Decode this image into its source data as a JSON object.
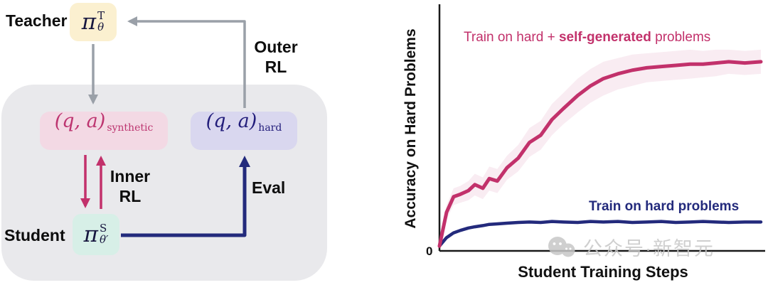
{
  "figure": {
    "diagram": {
      "teacher_label": "Teacher",
      "teacher_symbol": {
        "base": "π",
        "sup": "T",
        "sub": "θ"
      },
      "student_label": "Student",
      "student_symbol": {
        "base": "π",
        "sup": "S",
        "sub": "θ′"
      },
      "synthetic_box": {
        "base": "(q, a)",
        "sub": "synthetic"
      },
      "hard_box": {
        "base": "(q, a)",
        "sub": "hard"
      },
      "outer_rl_label": {
        "line1": "Outer",
        "line2": "RL"
      },
      "inner_rl_label": {
        "line1": "Inner",
        "line2": "RL"
      },
      "eval_label": "Eval",
      "colors": {
        "teacher_box_bg": "#fbf0d0",
        "student_box_bg": "#d7efe7",
        "synthetic_box_bg": "#f3d9e4",
        "hard_box_bg": "#d9d7ef",
        "panel_bg": "#e9e9ec",
        "crimson_accent": "#c2316b",
        "navy_accent": "#232a7c",
        "gray_arrow": "#9aa0a8"
      }
    },
    "chart": {
      "origin_label": "0",
      "series1_label_parts": [
        "Train on hard + ",
        "self-generated",
        " problems"
      ],
      "series2_label": "Train on hard problems"
    },
    "watermark": {
      "text": "公众号·新智元"
    }
  },
  "chart_data": {
    "type": "line",
    "title": "",
    "xlabel": "Student Training Steps",
    "ylabel": "Accuracy on Hard Problems",
    "x_origin_label": "0",
    "axis_numeric_ticks_shown": false,
    "xlim_normalized": [
      0,
      1
    ],
    "ylim_normalized": [
      0,
      1
    ],
    "grid": false,
    "legend_position": "inline-annotations",
    "series": [
      {
        "name": "Train on hard + self-generated problems",
        "color": "#c2316b",
        "width": 5,
        "band_name": "confidence-band",
        "x": [
          0,
          0.022,
          0.044,
          0.065,
          0.09,
          0.11,
          0.135,
          0.155,
          0.18,
          0.21,
          0.245,
          0.28,
          0.315,
          0.35,
          0.385,
          0.43,
          0.47,
          0.51,
          0.555,
          0.6,
          0.645,
          0.69,
          0.735,
          0.78,
          0.82,
          0.86,
          0.9,
          0.95,
          1.0
        ],
        "y": [
          0.02,
          0.16,
          0.225,
          0.235,
          0.25,
          0.275,
          0.26,
          0.3,
          0.29,
          0.345,
          0.385,
          0.45,
          0.48,
          0.545,
          0.59,
          0.645,
          0.685,
          0.715,
          0.735,
          0.75,
          0.76,
          0.765,
          0.77,
          0.775,
          0.775,
          0.78,
          0.785,
          0.78,
          0.785
        ],
        "band_halfwidth": [
          0.015,
          0.03,
          0.035,
          0.035,
          0.04,
          0.045,
          0.045,
          0.05,
          0.05,
          0.05,
          0.055,
          0.06,
          0.06,
          0.065,
          0.065,
          0.07,
          0.07,
          0.07,
          0.065,
          0.065,
          0.06,
          0.06,
          0.06,
          0.06,
          0.055,
          0.055,
          0.05,
          0.05,
          0.05
        ]
      },
      {
        "name": "Train on hard problems",
        "color": "#232a7c",
        "width": 4.5,
        "x": [
          0,
          0.022,
          0.044,
          0.065,
          0.09,
          0.11,
          0.135,
          0.155,
          0.18,
          0.21,
          0.245,
          0.28,
          0.315,
          0.35,
          0.385,
          0.43,
          0.47,
          0.51,
          0.555,
          0.6,
          0.645,
          0.69,
          0.735,
          0.78,
          0.82,
          0.86,
          0.9,
          0.95,
          1.0
        ],
        "y": [
          0.02,
          0.055,
          0.075,
          0.085,
          0.095,
          0.1,
          0.105,
          0.11,
          0.112,
          0.115,
          0.118,
          0.12,
          0.118,
          0.122,
          0.12,
          0.118,
          0.122,
          0.12,
          0.122,
          0.118,
          0.12,
          0.122,
          0.118,
          0.12,
          0.122,
          0.12,
          0.118,
          0.12,
          0.12
        ]
      }
    ]
  }
}
